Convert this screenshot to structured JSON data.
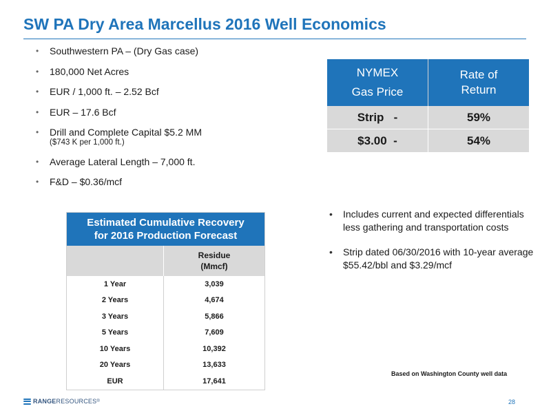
{
  "header": {
    "title": "SW PA Dry Area Marcellus 2016 Well Economics"
  },
  "bullets": [
    {
      "text": "Southwestern PA – (Dry Gas case)"
    },
    {
      "text": "180,000 Net Acres"
    },
    {
      "text": "EUR / 1,000 ft. – 2.52 Bcf"
    },
    {
      "text": "EUR – 17.6 Bcf"
    },
    {
      "text": "Drill and Complete Capital $5.2 MM",
      "sub": "($743 K per 1,000 ft.)"
    },
    {
      "text": "Average Lateral Length – 7,000 ft."
    },
    {
      "text": "F&D – $0.36/mcf"
    }
  ],
  "bullet_glyph": "•",
  "rate_table": {
    "header_col1_line1": "NYMEX",
    "header_col1_line2": "Gas Price",
    "header_col2_line1": "Rate of",
    "header_col2_line2": "Return",
    "rows": [
      {
        "price": "Strip   -",
        "ror": "59%"
      },
      {
        "price": "$3.00  -",
        "ror": "54%"
      }
    ]
  },
  "recovery_table": {
    "title_line1": "Estimated Cumulative Recovery",
    "title_line2": "for 2016 Production Forecast",
    "column_line1": "Residue",
    "column_line2": "(Mmcf)",
    "rows": [
      {
        "period": "1 Year",
        "value": "3,039"
      },
      {
        "period": "2 Years",
        "value": "4,674"
      },
      {
        "period": "3 Years",
        "value": "5,866"
      },
      {
        "period": "5 Years",
        "value": "7,609"
      },
      {
        "period": "10 Years",
        "value": "10,392"
      },
      {
        "period": "20 Years",
        "value": "13,633"
      },
      {
        "period": "EUR",
        "value": "17,641"
      }
    ]
  },
  "notes": [
    {
      "text": "Includes current and expected differentials less gathering and transportation costs"
    },
    {
      "text": "Strip dated 06/30/2016 with 10-year average $55.42/bbl and $3.29/mcf"
    }
  ],
  "footnote": "Based on Washington County well data",
  "footer": {
    "logo_bold": "RANGE",
    "logo_light": " RESOURCES",
    "logo_mark": "®",
    "page_number": "28"
  },
  "colors": {
    "accent": "#1f74ba",
    "table_fill": "#d9d9d9"
  }
}
